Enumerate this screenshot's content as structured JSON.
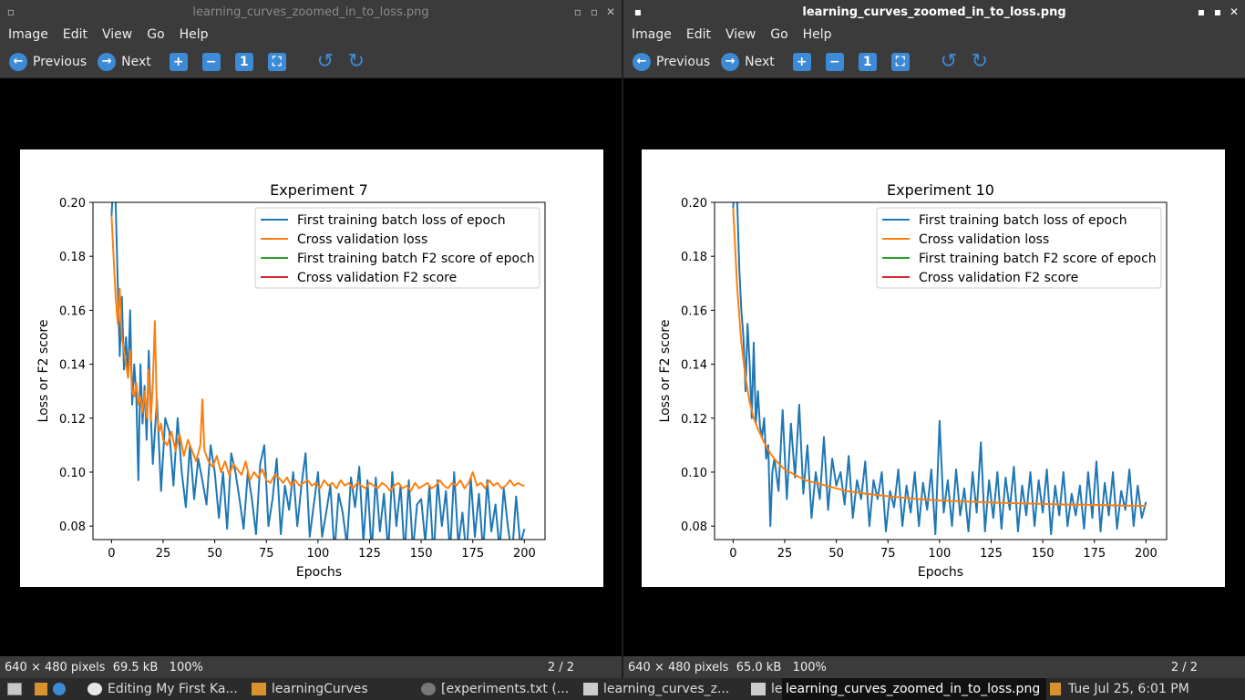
{
  "windows": [
    {
      "title": "learning_curves_zoomed_in_to_loss.png",
      "menu": [
        "Image",
        "Edit",
        "View",
        "Go",
        "Help"
      ],
      "toolbar": {
        "previous": "Previous",
        "next": "Next"
      },
      "status": {
        "dimensions": "640 × 480 pixels",
        "size": "69.5 kB",
        "zoom": "100%",
        "page": "2 / 2"
      }
    },
    {
      "title": "learning_curves_zoomed_in_to_loss.png",
      "menu": [
        "Image",
        "Edit",
        "View",
        "Go",
        "Help"
      ],
      "toolbar": {
        "previous": "Previous",
        "next": "Next"
      },
      "status": {
        "dimensions": "640 × 480 pixels",
        "size": "65.0 kB",
        "zoom": "100%",
        "page": "2 / 2"
      }
    }
  ],
  "taskbar": {
    "items": [
      "Editing My First Ka...",
      "learningCurves",
      "[experiments.txt (...",
      "learning_curves_z...",
      "le",
      "learning_curves_zoomed_in_to_loss.png"
    ],
    "clock": "Tue Jul 25, 6:01 PM"
  },
  "chart_data": [
    {
      "type": "line",
      "title": "Experiment 7",
      "xlabel": "Epochs",
      "ylabel": "Loss or F2 score",
      "xlim": [
        -9,
        210
      ],
      "ylim": [
        0.075,
        0.2
      ],
      "xticks": [
        0,
        25,
        50,
        75,
        100,
        125,
        150,
        175,
        200
      ],
      "yticks": [
        0.08,
        0.1,
        0.12,
        0.14,
        0.16,
        0.18,
        0.2
      ],
      "legend": "top-right",
      "legend_entries": [
        {
          "name": "First training batch loss of epoch",
          "color": "#1f77b4"
        },
        {
          "name": "Cross validation loss",
          "color": "#ff7f0e"
        },
        {
          "name": "First training batch F2 score of epoch",
          "color": "#2ca02c"
        },
        {
          "name": "Cross validation F2 score",
          "color": "#d62728"
        }
      ],
      "series": [
        {
          "name": "First training batch loss of epoch",
          "color": "#1f77b4",
          "x": [
            0,
            1,
            2,
            3,
            4,
            5,
            6,
            7,
            8,
            9,
            10,
            11,
            12,
            13,
            14,
            15,
            16,
            17,
            18,
            19,
            20,
            22,
            24,
            26,
            28,
            30,
            32,
            34,
            36,
            38,
            40,
            42,
            44,
            46,
            48,
            50,
            52,
            54,
            56,
            58,
            60,
            62,
            64,
            66,
            68,
            70,
            72,
            74,
            76,
            78,
            80,
            82,
            84,
            86,
            88,
            90,
            92,
            94,
            96,
            98,
            100,
            102,
            104,
            106,
            108,
            110,
            112,
            114,
            116,
            118,
            120,
            122,
            124,
            126,
            128,
            130,
            132,
            134,
            136,
            138,
            140,
            142,
            144,
            146,
            148,
            150,
            152,
            154,
            156,
            158,
            160,
            162,
            164,
            166,
            168,
            170,
            172,
            174,
            176,
            178,
            180,
            182,
            184,
            186,
            188,
            190,
            192,
            194,
            196,
            198,
            200
          ],
          "y": [
            0.195,
            0.21,
            0.2,
            0.17,
            0.143,
            0.165,
            0.138,
            0.15,
            0.135,
            0.16,
            0.125,
            0.14,
            0.128,
            0.097,
            0.14,
            0.118,
            0.132,
            0.112,
            0.145,
            0.122,
            0.103,
            0.127,
            0.093,
            0.12,
            0.115,
            0.095,
            0.12,
            0.1,
            0.087,
            0.11,
            0.09,
            0.105,
            0.097,
            0.088,
            0.11,
            0.1,
            0.083,
            0.1,
            0.079,
            0.107,
            0.1,
            0.09,
            0.079,
            0.1,
            0.09,
            0.077,
            0.103,
            0.11,
            0.08,
            0.09,
            0.105,
            0.077,
            0.095,
            0.086,
            0.1,
            0.08,
            0.095,
            0.107,
            0.076,
            0.088,
            0.1,
            0.076,
            0.085,
            0.095,
            0.07,
            0.092,
            0.085,
            0.073,
            0.098,
            0.087,
            0.102,
            0.074,
            0.097,
            0.07,
            0.098,
            0.078,
            0.092,
            0.07,
            0.1,
            0.08,
            0.095,
            0.069,
            0.097,
            0.071,
            0.088,
            0.09,
            0.074,
            0.095,
            0.068,
            0.097,
            0.08,
            0.093,
            0.07,
            0.1,
            0.073,
            0.085,
            0.068,
            0.098,
            0.076,
            0.092,
            0.07,
            0.097,
            0.078,
            0.088,
            0.071,
            0.094,
            0.08,
            0.069,
            0.091,
            0.073,
            0.079
          ]
        },
        {
          "name": "Cross validation loss",
          "color": "#ff7f0e",
          "x": [
            0,
            1,
            2,
            3,
            4,
            5,
            6,
            7,
            8,
            9,
            10,
            11,
            12,
            13,
            14,
            15,
            16,
            17,
            18,
            19,
            20,
            21,
            22,
            23,
            24,
            25,
            27,
            29,
            31,
            33,
            35,
            37,
            39,
            41,
            43,
            44,
            45,
            47,
            49,
            51,
            53,
            55,
            57,
            59,
            61,
            63,
            65,
            67,
            69,
            71,
            73,
            75,
            77,
            79,
            81,
            83,
            85,
            87,
            89,
            91,
            93,
            95,
            97,
            99,
            101,
            103,
            105,
            107,
            109,
            111,
            113,
            115,
            117,
            119,
            121,
            123,
            125,
            127,
            129,
            131,
            133,
            135,
            137,
            139,
            141,
            143,
            145,
            147,
            149,
            151,
            153,
            155,
            157,
            159,
            161,
            163,
            165,
            167,
            169,
            171,
            173,
            175,
            177,
            179,
            181,
            183,
            185,
            187,
            189,
            191,
            193,
            195,
            197,
            199,
            200
          ],
          "y": [
            0.195,
            0.18,
            0.165,
            0.155,
            0.168,
            0.15,
            0.145,
            0.14,
            0.135,
            0.145,
            0.13,
            0.128,
            0.133,
            0.125,
            0.128,
            0.122,
            0.13,
            0.12,
            0.138,
            0.119,
            0.133,
            0.156,
            0.121,
            0.115,
            0.118,
            0.112,
            0.11,
            0.115,
            0.108,
            0.114,
            0.106,
            0.112,
            0.108,
            0.104,
            0.11,
            0.127,
            0.108,
            0.104,
            0.102,
            0.106,
            0.1,
            0.104,
            0.099,
            0.103,
            0.101,
            0.099,
            0.104,
            0.097,
            0.1,
            0.098,
            0.101,
            0.097,
            0.096,
            0.099,
            0.098,
            0.096,
            0.098,
            0.095,
            0.097,
            0.095,
            0.096,
            0.097,
            0.095,
            0.096,
            0.094,
            0.097,
            0.095,
            0.096,
            0.094,
            0.097,
            0.095,
            0.096,
            0.094,
            0.096,
            0.095,
            0.094,
            0.096,
            0.095,
            0.094,
            0.096,
            0.095,
            0.093,
            0.095,
            0.096,
            0.094,
            0.095,
            0.093,
            0.096,
            0.094,
            0.095,
            0.096,
            0.094,
            0.095,
            0.097,
            0.095,
            0.094,
            0.096,
            0.095,
            0.097,
            0.094,
            0.096,
            0.1,
            0.095,
            0.096,
            0.094,
            0.097,
            0.095,
            0.096,
            0.094,
            0.095,
            0.097,
            0.095,
            0.096,
            0.095,
            0.095
          ]
        }
      ]
    },
    {
      "type": "line",
      "title": "Experiment 10",
      "xlabel": "Epochs",
      "ylabel": "Loss or F2 score",
      "xlim": [
        -9,
        210
      ],
      "ylim": [
        0.075,
        0.2
      ],
      "xticks": [
        0,
        25,
        50,
        75,
        100,
        125,
        150,
        175,
        200
      ],
      "yticks": [
        0.08,
        0.1,
        0.12,
        0.14,
        0.16,
        0.18,
        0.2
      ],
      "legend": "top-right",
      "legend_entries": [
        {
          "name": "First training batch loss of epoch",
          "color": "#1f77b4"
        },
        {
          "name": "Cross validation loss",
          "color": "#ff7f0e"
        },
        {
          "name": "First training batch F2 score of epoch",
          "color": "#2ca02c"
        },
        {
          "name": "Cross validation F2 score",
          "color": "#d62728"
        }
      ],
      "series": [
        {
          "name": "First training batch loss of epoch",
          "color": "#1f77b4",
          "x": [
            0,
            1,
            2,
            3,
            4,
            5,
            6,
            7,
            8,
            9,
            10,
            11,
            12,
            13,
            14,
            15,
            16,
            17,
            18,
            19,
            20,
            22,
            24,
            26,
            28,
            30,
            32,
            34,
            36,
            38,
            40,
            42,
            44,
            46,
            48,
            50,
            52,
            54,
            56,
            58,
            60,
            62,
            64,
            66,
            68,
            70,
            72,
            74,
            76,
            78,
            80,
            82,
            84,
            86,
            88,
            90,
            92,
            94,
            96,
            98,
            100,
            102,
            104,
            106,
            108,
            110,
            112,
            114,
            116,
            118,
            120,
            122,
            124,
            126,
            128,
            130,
            132,
            134,
            136,
            138,
            140,
            142,
            144,
            146,
            148,
            150,
            152,
            154,
            156,
            158,
            160,
            162,
            164,
            166,
            168,
            170,
            172,
            174,
            176,
            178,
            180,
            182,
            184,
            186,
            188,
            190,
            192,
            194,
            196,
            198,
            200
          ],
          "y": [
            0.198,
            0.21,
            0.2,
            0.175,
            0.16,
            0.15,
            0.13,
            0.155,
            0.14,
            0.12,
            0.148,
            0.118,
            0.13,
            0.117,
            0.113,
            0.12,
            0.105,
            0.11,
            0.08,
            0.1,
            0.105,
            0.093,
            0.123,
            0.09,
            0.118,
            0.098,
            0.125,
            0.092,
            0.11,
            0.083,
            0.1,
            0.09,
            0.113,
            0.086,
            0.105,
            0.095,
            0.1,
            0.088,
            0.106,
            0.083,
            0.097,
            0.09,
            0.104,
            0.08,
            0.097,
            0.09,
            0.1,
            0.078,
            0.093,
            0.087,
            0.101,
            0.08,
            0.095,
            0.085,
            0.1,
            0.08,
            0.096,
            0.086,
            0.101,
            0.077,
            0.119,
            0.085,
            0.097,
            0.08,
            0.101,
            0.084,
            0.094,
            0.078,
            0.1,
            0.085,
            0.111,
            0.078,
            0.097,
            0.083,
            0.1,
            0.079,
            0.098,
            0.086,
            0.102,
            0.078,
            0.095,
            0.084,
            0.1,
            0.08,
            0.097,
            0.085,
            0.101,
            0.077,
            0.095,
            0.084,
            0.1,
            0.08,
            0.092,
            0.084,
            0.095,
            0.079,
            0.1,
            0.083,
            0.104,
            0.078,
            0.096,
            0.084,
            0.1,
            0.079,
            0.093,
            0.086,
            0.101,
            0.08,
            0.095,
            0.083,
            0.089
          ]
        },
        {
          "name": "Cross validation loss",
          "color": "#ff7f0e",
          "x": [
            0,
            2,
            4,
            6,
            8,
            10,
            12,
            15,
            18,
            21,
            25,
            30,
            35,
            40,
            45,
            50,
            55,
            60,
            70,
            80,
            90,
            100,
            110,
            120,
            130,
            140,
            150,
            160,
            170,
            180,
            190,
            200
          ],
          "y": [
            0.198,
            0.168,
            0.148,
            0.135,
            0.126,
            0.12,
            0.116,
            0.111,
            0.107,
            0.104,
            0.101,
            0.099,
            0.097,
            0.096,
            0.095,
            0.094,
            0.093,
            0.0925,
            0.0915,
            0.0907,
            0.09,
            0.0895,
            0.0892,
            0.0889,
            0.0886,
            0.0884,
            0.0882,
            0.088,
            0.0879,
            0.0878,
            0.0876,
            0.0875
          ]
        }
      ]
    }
  ]
}
